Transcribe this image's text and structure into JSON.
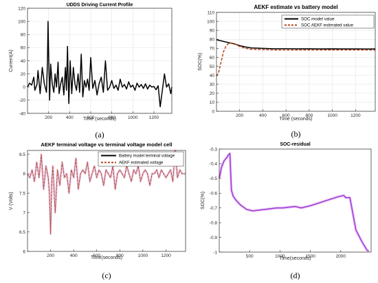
{
  "chart_data": [
    {
      "id": "a",
      "type": "line",
      "title": "UDDS Driving Current Profile",
      "xlabel": "Time (seconds)",
      "ylabel": "Current(A)",
      "caption": "(a)",
      "xlim": [
        0,
        1370
      ],
      "ylim": [
        -40,
        120
      ],
      "xticks": [
        200,
        400,
        600,
        800,
        1000,
        1200
      ],
      "yticks": [
        -40,
        -20,
        0,
        20,
        40,
        60,
        80,
        100,
        120
      ],
      "grid": true,
      "series": [
        {
          "color": "#000000",
          "x": [
            0,
            20,
            40,
            60,
            70,
            90,
            100,
            120,
            140,
            160,
            180,
            190,
            195,
            200,
            210,
            220,
            235,
            250,
            262,
            275,
            290,
            300,
            315,
            330,
            345,
            360,
            370,
            380,
            392,
            405,
            420,
            435,
            450,
            465,
            480,
            495,
            510,
            525,
            540,
            555,
            570,
            585,
            600,
            620,
            640,
            660,
            680,
            700,
            720,
            740,
            760,
            780,
            800,
            820,
            840,
            860,
            880,
            900,
            920,
            940,
            960,
            980,
            1000,
            1020,
            1040,
            1060,
            1080,
            1100,
            1120,
            1140,
            1160,
            1180,
            1200,
            1220,
            1240,
            1260,
            1280,
            1300,
            1320,
            1340,
            1360,
            1370
          ],
          "y": [
            0,
            6,
            3,
            15,
            -5,
            4,
            25,
            -10,
            30,
            5,
            -8,
            40,
            100,
            55,
            -20,
            35,
            5,
            -8,
            20,
            0,
            38,
            -10,
            5,
            15,
            -12,
            30,
            -5,
            62,
            -25,
            40,
            -10,
            30,
            5,
            -5,
            20,
            -8,
            50,
            -15,
            10,
            0,
            12,
            -5,
            45,
            -2,
            10,
            -12,
            5,
            15,
            -8,
            40,
            -5,
            0,
            10,
            -2,
            3,
            -5,
            12,
            0,
            4,
            -3,
            8,
            0,
            3,
            -5,
            6,
            0,
            4,
            -2,
            5,
            -3,
            3,
            0,
            1,
            -4,
            2,
            -30,
            -5,
            20,
            0,
            5,
            -10,
            0
          ]
        }
      ]
    },
    {
      "id": "b",
      "type": "line",
      "title": "AEKF estimate vs battery model",
      "xlabel": "Time (seconds)",
      "ylabel": "SOC(%)",
      "caption": "(b)",
      "xlim": [
        0,
        1370
      ],
      "ylim": [
        0,
        110
      ],
      "xticks": [
        200,
        400,
        600,
        800,
        1000,
        1200
      ],
      "yticks": [
        0,
        10,
        20,
        30,
        40,
        50,
        60,
        70,
        80,
        90,
        100,
        110
      ],
      "grid": true,
      "legend": "top-right",
      "series": [
        {
          "name": "SOC model value",
          "color": "#000000",
          "x": [
            0,
            50,
            100,
            150,
            200,
            250,
            300,
            400,
            500,
            600,
            700,
            800,
            900,
            1000,
            1100,
            1200,
            1300,
            1370
          ],
          "y": [
            79.5,
            78,
            76.5,
            75,
            73,
            71.5,
            70.5,
            70,
            69.5,
            69.6,
            69.4,
            69.5,
            69.3,
            69.4,
            69.3,
            69.3,
            69.2,
            69.3
          ]
        },
        {
          "name": "SOC AEKF estimated value",
          "color": "#b5451b",
          "dash": true,
          "x": [
            0,
            20,
            40,
            60,
            80,
            100,
            130,
            160,
            200,
            250,
            300,
            400,
            500,
            600,
            700,
            800,
            900,
            1000,
            1100,
            1200,
            1300,
            1370
          ],
          "y": [
            39,
            44,
            55,
            66,
            72,
            75,
            76,
            75,
            72,
            70,
            69,
            68.5,
            68.2,
            68.2,
            68.2,
            68.2,
            68.2,
            68.2,
            68.2,
            68.2,
            68.2,
            68.2
          ]
        }
      ]
    },
    {
      "id": "c",
      "type": "line",
      "title": "AEKF  terminal voltage vs  terminal voltage model cell",
      "xlabel": "Time(seconds)",
      "ylabel": "V (Volts)",
      "caption": "(c)",
      "xlim": [
        0,
        1370
      ],
      "ylim": [
        6,
        8.6
      ],
      "xticks": [
        200,
        400,
        600,
        800,
        1000,
        1200
      ],
      "yticks": [
        6,
        6.5,
        7,
        7.5,
        8,
        8.5
      ],
      "grid": false,
      "legend": "top-right",
      "series": [
        {
          "name": "Battery model terminal voltage",
          "color": "#000000",
          "x": [
            0,
            20,
            40,
            60,
            80,
            100,
            120,
            140,
            160,
            180,
            190,
            200,
            210,
            220,
            240,
            260,
            280,
            300,
            320,
            340,
            360,
            380,
            400,
            420,
            440,
            460,
            480,
            500,
            520,
            540,
            560,
            580,
            600,
            620,
            640,
            660,
            680,
            700,
            720,
            740,
            760,
            780,
            800,
            820,
            840,
            860,
            880,
            900,
            920,
            940,
            960,
            980,
            1000,
            1020,
            1040,
            1060,
            1080,
            1100,
            1120,
            1140,
            1160,
            1180,
            1200,
            1220,
            1240,
            1260,
            1280,
            1300,
            1320,
            1340,
            1370
          ],
          "y": [
            8.0,
            7.9,
            8.1,
            7.8,
            8.3,
            7.9,
            8.5,
            7.6,
            8.2,
            7.9,
            7.5,
            6.45,
            7.8,
            8.2,
            7.0,
            8.1,
            7.7,
            8.3,
            7.9,
            8.0,
            7.5,
            8.1,
            7.9,
            8.4,
            7.6,
            8.0,
            8.1,
            8.0,
            8.3,
            7.8,
            8.0,
            8.2,
            7.9,
            8.1,
            8.0,
            7.7,
            8.1,
            8.0,
            7.9,
            8.2,
            7.6,
            8.0,
            8.1,
            8.0,
            7.9,
            8.2,
            8.0,
            7.8,
            8.1,
            8.0,
            8.2,
            7.8,
            8.0,
            8.1,
            8.0,
            7.7,
            8.0,
            8.0,
            8.1,
            7.9,
            8.1,
            8.0,
            7.9,
            8.0,
            8.1,
            7.8,
            8.6,
            7.9,
            8.1,
            8.0,
            8.0
          ]
        },
        {
          "name": "AEKF estimated voltage",
          "color": "#b5451b",
          "dash": true,
          "x": [
            0,
            20,
            40,
            60,
            80,
            100,
            120,
            140,
            160,
            180,
            190,
            200,
            210,
            220,
            240,
            260,
            280,
            300,
            320,
            340,
            360,
            380,
            400,
            420,
            440,
            460,
            480,
            500,
            520,
            540,
            560,
            580,
            600,
            620,
            640,
            660,
            680,
            700,
            720,
            740,
            760,
            780,
            800,
            820,
            840,
            860,
            880,
            900,
            920,
            940,
            960,
            980,
            1000,
            1020,
            1040,
            1060,
            1080,
            1100,
            1120,
            1140,
            1160,
            1180,
            1200,
            1220,
            1240,
            1260,
            1280,
            1300,
            1320,
            1340,
            1370
          ],
          "y": [
            8.0,
            7.9,
            8.1,
            7.8,
            8.3,
            7.9,
            8.5,
            7.6,
            8.2,
            7.9,
            7.5,
            6.45,
            7.8,
            8.2,
            7.0,
            8.1,
            7.7,
            8.3,
            7.9,
            8.0,
            7.5,
            8.1,
            7.9,
            8.4,
            7.6,
            8.0,
            8.1,
            8.0,
            8.3,
            7.8,
            8.0,
            8.2,
            7.9,
            8.1,
            8.0,
            7.7,
            8.1,
            8.0,
            7.9,
            8.2,
            7.6,
            8.0,
            8.1,
            8.0,
            7.9,
            8.2,
            8.0,
            7.8,
            8.1,
            8.0,
            8.2,
            7.8,
            8.0,
            8.1,
            8.0,
            7.7,
            8.0,
            8.0,
            8.1,
            7.9,
            8.1,
            8.0,
            7.9,
            8.0,
            8.1,
            7.8,
            8.6,
            7.9,
            8.1,
            8.0,
            8.0
          ]
        }
      ]
    },
    {
      "id": "d",
      "type": "line",
      "title": "SOC-residual",
      "xlabel": "Time(seconds)",
      "ylabel": "SOC(%)",
      "caption": "(d)",
      "xlim": [
        0,
        2500
      ],
      "ylim": [
        -1,
        -0.3
      ],
      "xticks": [
        500,
        1000,
        1500,
        2000
      ],
      "yticks": [
        -1,
        -0.9,
        -0.8,
        -0.7,
        -0.6,
        -0.5,
        -0.4,
        -0.3
      ],
      "grid": false,
      "series": [
        {
          "color": "#a33fd6",
          "x": [
            0,
            40,
            80,
            120,
            150,
            175,
            200,
            230,
            280,
            350,
            450,
            550,
            650,
            750,
            850,
            950,
            1050,
            1150,
            1250,
            1350,
            1500,
            1650,
            1800,
            1950,
            2050,
            2080,
            2150,
            2250,
            2350,
            2430,
            2460
          ],
          "y": [
            -0.5,
            -0.42,
            -0.38,
            -0.36,
            -0.34,
            -0.33,
            -0.58,
            -0.62,
            -0.65,
            -0.68,
            -0.71,
            -0.72,
            -0.715,
            -0.71,
            -0.705,
            -0.7,
            -0.7,
            -0.695,
            -0.69,
            -0.7,
            -0.685,
            -0.665,
            -0.645,
            -0.625,
            -0.615,
            -0.63,
            -0.63,
            -0.85,
            -0.93,
            -0.985,
            -0.995
          ]
        }
      ]
    }
  ]
}
